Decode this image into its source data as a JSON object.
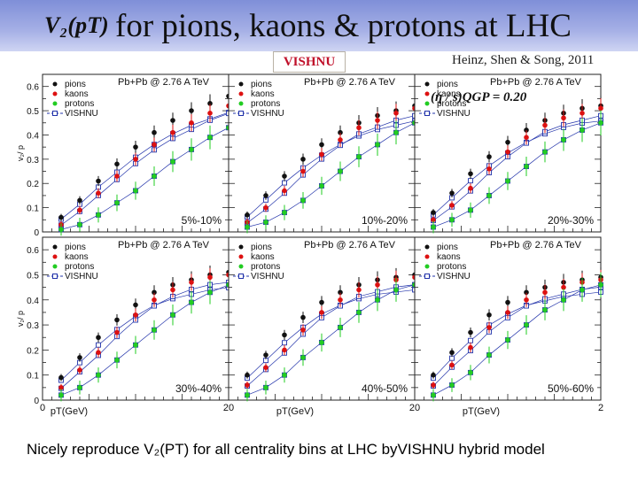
{
  "header": {
    "title_math": "V₂(pT)",
    "title_text": "for pions, kaons & protons at LHC",
    "badge": "VISHNU",
    "citation": "Heinz, Shen & Song, 2011"
  },
  "caption": "Nicely reproduce V₂(PT) for all centrality bins at LHC byVISHNU hybrid model",
  "colors": {
    "pions": "#111111",
    "kaons": "#dd1111",
    "protons": "#22cc22",
    "vishnu": "#2233aa",
    "title_bar": "#8e9ade"
  },
  "chart_data": {
    "type": "scatter",
    "grid": "2 rows x 3 columns, shared axes",
    "collision_label": "Pb+Pb @ 2.76 A TeV",
    "ylabel": "v₂/ p",
    "xlabel": "pT(GeV)",
    "xlabel_variant": "pT(GeV)",
    "xlim": [
      0,
      2.0
    ],
    "ylim": [
      0,
      0.65
    ],
    "y_ticks": [
      "0",
      "0.1",
      "0.2",
      "0.3",
      "0.4",
      "0.5",
      "0.6"
    ],
    "x_tick_labels": {
      "left": "0",
      "mid": "20",
      "right": "2"
    },
    "legend": [
      "pions",
      "kaons",
      "protons",
      "VISHNU"
    ],
    "viscosity_label": "(η / s)QGP = 0.20",
    "panels": [
      {
        "centrality": "5%-10%",
        "x": [
          0.2,
          0.4,
          0.6,
          0.8,
          1.0,
          1.2,
          1.4,
          1.6,
          1.8,
          2.0
        ],
        "series": [
          {
            "name": "pions",
            "values": [
              0.06,
              0.13,
              0.21,
              0.28,
              0.35,
              0.41,
              0.46,
              0.5,
              0.53,
              0.56
            ]
          },
          {
            "name": "kaons",
            "values": [
              0.03,
              0.09,
              0.16,
              0.23,
              0.3,
              0.36,
              0.41,
              0.45,
              0.49,
              0.52
            ]
          },
          {
            "name": "protons",
            "values": [
              0.01,
              0.03,
              0.07,
              0.12,
              0.17,
              0.23,
              0.29,
              0.34,
              0.39,
              0.43
            ]
          }
        ]
      },
      {
        "centrality": "10%-20%",
        "x": [
          0.2,
          0.4,
          0.6,
          0.8,
          1.0,
          1.2,
          1.4,
          1.6,
          1.8,
          2.0
        ],
        "series": [
          {
            "name": "pions",
            "values": [
              0.07,
              0.15,
              0.23,
              0.3,
              0.36,
              0.41,
              0.45,
              0.48,
              0.5,
              0.52
            ]
          },
          {
            "name": "kaons",
            "values": [
              0.04,
              0.1,
              0.17,
              0.25,
              0.32,
              0.38,
              0.43,
              0.46,
              0.49,
              0.51
            ]
          },
          {
            "name": "protons",
            "values": [
              0.02,
              0.04,
              0.08,
              0.13,
              0.19,
              0.25,
              0.31,
              0.36,
              0.41,
              0.45
            ]
          }
        ]
      },
      {
        "centrality": "20%-30%",
        "x": [
          0.2,
          0.4,
          0.6,
          0.8,
          1.0,
          1.2,
          1.4,
          1.6,
          1.8,
          2.0
        ],
        "series": [
          {
            "name": "pions",
            "values": [
              0.08,
              0.16,
              0.24,
              0.31,
              0.37,
              0.42,
              0.46,
              0.49,
              0.51,
              0.52
            ]
          },
          {
            "name": "kaons",
            "values": [
              0.05,
              0.11,
              0.18,
              0.26,
              0.33,
              0.39,
              0.44,
              0.47,
              0.49,
              0.51
            ]
          },
          {
            "name": "protons",
            "values": [
              0.02,
              0.05,
              0.09,
              0.15,
              0.21,
              0.27,
              0.33,
              0.38,
              0.42,
              0.45
            ]
          }
        ]
      },
      {
        "centrality": "30%-40%",
        "x": [
          0.2,
          0.4,
          0.6,
          0.8,
          1.0,
          1.2,
          1.4,
          1.6,
          1.8,
          2.0
        ],
        "series": [
          {
            "name": "pions",
            "values": [
              0.09,
              0.17,
              0.25,
              0.32,
              0.38,
              0.43,
              0.46,
              0.48,
              0.5,
              0.51
            ]
          },
          {
            "name": "kaons",
            "values": [
              0.05,
              0.12,
              0.19,
              0.27,
              0.34,
              0.4,
              0.44,
              0.47,
              0.49,
              0.5
            ]
          },
          {
            "name": "protons",
            "values": [
              0.02,
              0.05,
              0.1,
              0.16,
              0.22,
              0.28,
              0.34,
              0.39,
              0.43,
              0.46
            ]
          }
        ]
      },
      {
        "centrality": "40%-50%",
        "x": [
          0.2,
          0.4,
          0.6,
          0.8,
          1.0,
          1.2,
          1.4,
          1.6,
          1.8,
          2.0
        ],
        "series": [
          {
            "name": "pions",
            "values": [
              0.1,
              0.18,
              0.26,
              0.33,
              0.39,
              0.43,
              0.46,
              0.48,
              0.49,
              0.5
            ]
          },
          {
            "name": "kaons",
            "values": [
              0.06,
              0.13,
              0.2,
              0.28,
              0.35,
              0.4,
              0.44,
              0.46,
              0.48,
              0.49
            ]
          },
          {
            "name": "protons",
            "values": [
              0.02,
              0.05,
              0.1,
              0.17,
              0.23,
              0.29,
              0.35,
              0.4,
              0.44,
              0.46
            ]
          }
        ]
      },
      {
        "centrality": "50%-60%",
        "x": [
          0.2,
          0.4,
          0.6,
          0.8,
          1.0,
          1.2,
          1.4,
          1.6,
          1.8,
          2.0
        ],
        "series": [
          {
            "name": "pions",
            "values": [
              0.1,
              0.19,
              0.27,
              0.34,
              0.39,
              0.43,
              0.45,
              0.47,
              0.48,
              0.49
            ]
          },
          {
            "name": "kaons",
            "values": [
              0.06,
              0.14,
              0.21,
              0.29,
              0.35,
              0.4,
              0.43,
              0.45,
              0.47,
              0.48
            ]
          },
          {
            "name": "protons",
            "values": [
              0.02,
              0.06,
              0.11,
              0.18,
              0.24,
              0.3,
              0.36,
              0.4,
              0.44,
              0.46
            ]
          }
        ]
      }
    ]
  }
}
